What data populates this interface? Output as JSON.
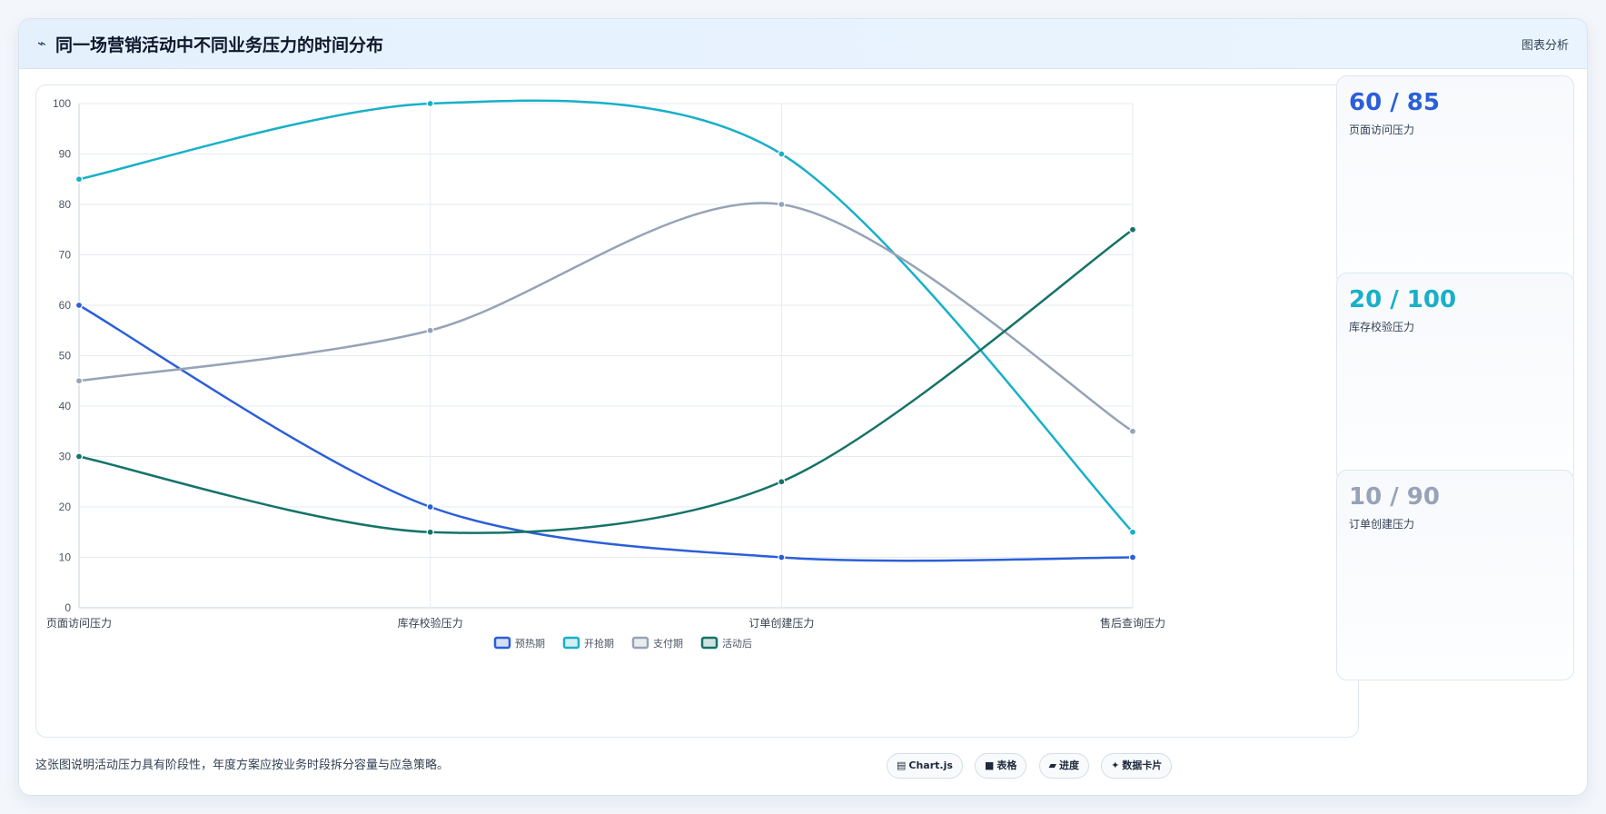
{
  "header": {
    "icon": "pulse-icon",
    "title": "同一场营销活动中不同业务压力的时间分布",
    "action_label": "图表分析"
  },
  "chart_data": {
    "type": "line",
    "title": "",
    "xlabel": "",
    "ylabel": "",
    "categories": [
      "页面访问压力",
      "库存校验压力",
      "订单创建压力",
      "售后查询压力"
    ],
    "ylim": [
      0,
      100
    ],
    "yticks": [
      0,
      10,
      20,
      30,
      40,
      50,
      60,
      70,
      80,
      90,
      100
    ],
    "grid": true,
    "legend_position": "bottom-center",
    "series": [
      {
        "name": "预热期",
        "values": [
          60,
          20,
          10,
          10
        ],
        "color": "#2b5fd9"
      },
      {
        "name": "开抢期",
        "values": [
          85,
          100,
          90,
          15
        ],
        "color": "#18b0c8"
      },
      {
        "name": "支付期",
        "values": [
          45,
          55,
          80,
          35
        ],
        "color": "#97a3b6"
      },
      {
        "name": "活动后",
        "values": [
          30,
          15,
          25,
          75
        ],
        "color": "#157368"
      }
    ]
  },
  "stats": [
    {
      "value": "60 / 85",
      "label": "页面访问压力",
      "color": "#2b5fd9"
    },
    {
      "value": "20 / 100",
      "label": "库存校验压力",
      "color": "#18b0c8"
    },
    {
      "value": "10 / 90",
      "label": "订单创建压力",
      "color": "#97a3b6"
    }
  ],
  "footer": {
    "note": "这张图说明活动压力具有阶段性，年度方案应按业务时段拆分容量与应急策略。",
    "chips": [
      {
        "icon": "chart-icon",
        "glyph": "▤",
        "label": "Chart.js"
      },
      {
        "icon": "table-icon",
        "glyph": "■",
        "label": "表格"
      },
      {
        "icon": "progress-icon",
        "glyph": "▰",
        "label": "进度"
      },
      {
        "icon": "data-card-icon",
        "glyph": "✦",
        "label": "数据卡片"
      }
    ]
  }
}
